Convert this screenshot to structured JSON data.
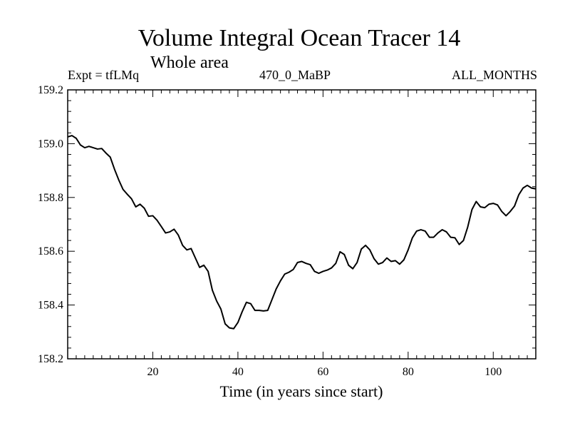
{
  "title": "Volume Integral Ocean Tracer 14",
  "subtitle": "Whole area",
  "header": {
    "left": "Expt = tfLMq",
    "center": "470_0_MaBP",
    "right": "ALL_MONTHS"
  },
  "chart_data": {
    "type": "line",
    "xlabel": "Time (in years since start)",
    "ylabel": "",
    "xlim": [
      0,
      110
    ],
    "ylim": [
      158.2,
      159.2
    ],
    "x_ticks": [
      20,
      40,
      60,
      80,
      100
    ],
    "y_ticks": [
      "158.2",
      "158.4",
      "158.6",
      "158.8",
      "159.0",
      "159.2"
    ],
    "grid": false,
    "series": [
      {
        "color": "#000000",
        "x": [
          0,
          1,
          2,
          3,
          4,
          5,
          6,
          7,
          8,
          9,
          10,
          11,
          12,
          13,
          14,
          15,
          16,
          17,
          18,
          19,
          20,
          21,
          22,
          23,
          24,
          25,
          26,
          27,
          28,
          29,
          30,
          31,
          32,
          33,
          34,
          35,
          36,
          37,
          38,
          39,
          40,
          41,
          42,
          43,
          44,
          45,
          46,
          47,
          48,
          49,
          50,
          51,
          52,
          53,
          54,
          55,
          56,
          57,
          58,
          59,
          60,
          61,
          62,
          63,
          64,
          65,
          66,
          67,
          68,
          69,
          70,
          71,
          72,
          73,
          74,
          75,
          76,
          77,
          78,
          79,
          80,
          81,
          82,
          83,
          84,
          85,
          86,
          87,
          88,
          89,
          90,
          91,
          92,
          93,
          94,
          95,
          96,
          97,
          98,
          99,
          100,
          101,
          102,
          103,
          104,
          105,
          106,
          107,
          108,
          109,
          110
        ],
        "y": [
          159.025,
          159.03,
          159.02,
          158.995,
          158.985,
          158.99,
          158.985,
          158.98,
          158.982,
          158.965,
          158.95,
          158.905,
          158.865,
          158.83,
          158.812,
          158.795,
          158.765,
          158.775,
          158.76,
          158.73,
          158.732,
          158.715,
          158.692,
          158.668,
          158.672,
          158.682,
          158.66,
          158.622,
          158.605,
          158.61,
          158.575,
          158.54,
          158.548,
          158.525,
          158.455,
          158.415,
          158.385,
          158.33,
          158.315,
          158.312,
          158.335,
          158.375,
          158.41,
          158.405,
          158.38,
          158.38,
          158.378,
          158.38,
          158.42,
          158.46,
          158.49,
          158.515,
          158.522,
          158.532,
          158.558,
          158.562,
          158.555,
          158.55,
          158.525,
          158.518,
          158.525,
          158.53,
          158.538,
          158.555,
          158.598,
          158.588,
          158.548,
          158.535,
          158.558,
          158.608,
          158.622,
          158.605,
          158.572,
          158.552,
          158.558,
          158.575,
          158.562,
          158.565,
          158.552,
          158.568,
          158.605,
          158.65,
          158.675,
          158.68,
          158.675,
          158.652,
          158.652,
          158.668,
          158.68,
          158.672,
          158.652,
          158.65,
          158.625,
          158.64,
          158.69,
          158.755,
          158.785,
          158.765,
          158.762,
          158.775,
          158.778,
          158.772,
          158.748,
          158.732,
          158.748,
          158.768,
          158.81,
          158.835,
          158.845,
          158.835,
          158.832
        ]
      }
    ]
  }
}
